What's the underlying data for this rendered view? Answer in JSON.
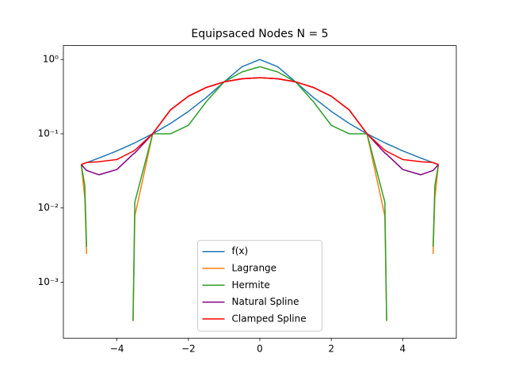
{
  "chart_data": {
    "type": "line",
    "title": "Equipsaced Nodes N = 5",
    "x": [
      -5,
      -4.9,
      -4.85,
      -4.5,
      -4,
      -3.55,
      -3.5,
      -3,
      -2.5,
      -2,
      -1.5,
      -1,
      -0.5,
      0,
      0.5,
      1,
      1.5,
      2,
      2.5,
      3,
      3.5,
      3.55,
      4,
      4.5,
      4.85,
      4.9,
      5
    ],
    "series": [
      {
        "name": "f(x)",
        "color": "#1f77b4",
        "values": [
          0.0385,
          0.04,
          0.0408,
          0.0471,
          0.0588,
          0.0735,
          0.0755,
          0.1,
          0.1379,
          0.2,
          0.3077,
          0.5,
          0.8,
          1,
          0.8,
          0.5,
          0.3077,
          0.2,
          0.1379,
          0.1,
          0.0755,
          0.0735,
          0.0588,
          0.0471,
          0.0408,
          0.04,
          0.0385
        ]
      },
      {
        "name": "Lagrange",
        "color": "#ff7f0e",
        "values": [
          0.0385,
          0.0137,
          0.0024,
          null,
          null,
          0.0003,
          0.0078,
          0.1,
          0.2097,
          0.3212,
          0.4213,
          0.5,
          0.5501,
          0.5673,
          0.5501,
          0.5,
          0.4213,
          0.3212,
          0.2097,
          0.1,
          0.0078,
          0.0003,
          null,
          null,
          0.0024,
          0.0137,
          0.0385
        ]
      },
      {
        "name": "Hermite",
        "color": "#2ca02c",
        "values": [
          0.0385,
          0.02,
          0.003,
          null,
          null,
          0.0003,
          0.012,
          0.1,
          0.1,
          0.13,
          0.27,
          0.5,
          0.68,
          0.8,
          0.68,
          0.5,
          0.27,
          0.13,
          0.1,
          0.1,
          0.012,
          0.0003,
          null,
          null,
          0.003,
          0.02,
          0.0385
        ]
      },
      {
        "name": "Natural Spline",
        "color": "#800080",
        "values": [
          0.0385,
          0.034,
          0.032,
          0.028,
          0.033,
          0.053,
          0.055,
          0.1,
          0.21,
          0.32,
          0.42,
          0.5,
          0.55,
          0.57,
          0.55,
          0.5,
          0.42,
          0.32,
          0.21,
          0.1,
          0.055,
          0.053,
          0.033,
          0.028,
          0.032,
          0.034,
          0.0385
        ]
      },
      {
        "name": "Clamped Spline",
        "color": "#ff0000",
        "values": [
          0.0385,
          0.04,
          0.041,
          0.042,
          0.045,
          0.058,
          0.06,
          0.1,
          0.21,
          0.32,
          0.42,
          0.5,
          0.55,
          0.57,
          0.55,
          0.5,
          0.42,
          0.32,
          0.21,
          0.1,
          0.06,
          0.058,
          0.045,
          0.042,
          0.041,
          0.04,
          0.0385
        ]
      }
    ],
    "xlim": [
      -5.5,
      5.5
    ],
    "xticks": [
      {
        "value": -4,
        "label": "−4"
      },
      {
        "value": -2,
        "label": "−2"
      },
      0,
      2,
      4
    ],
    "ylim": [
      0.000176,
      1.54
    ],
    "yticks": [
      {
        "value": 0.001,
        "label": "10⁻³"
      },
      {
        "value": 0.01,
        "label": "10⁻²"
      },
      {
        "value": 0.1,
        "label": "10⁻¹"
      },
      {
        "value": 1,
        "label": "10⁰"
      }
    ],
    "yscale": "log",
    "legend": "lower center"
  }
}
